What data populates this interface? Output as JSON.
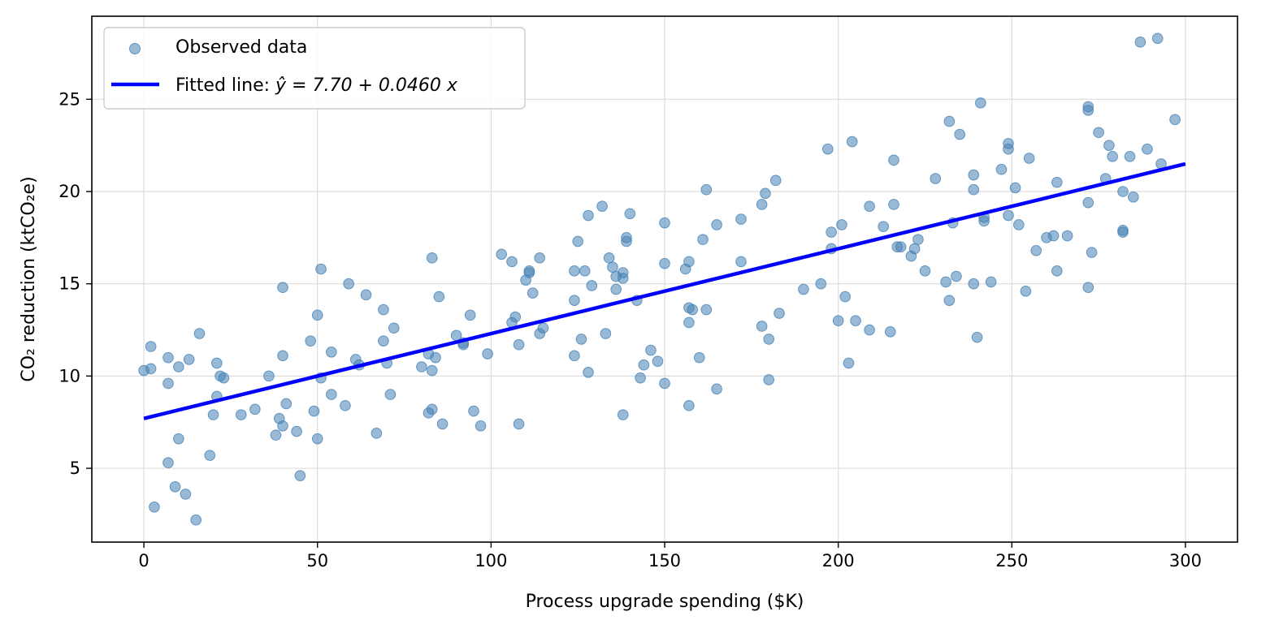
{
  "chart_data": {
    "type": "scatter",
    "xlabel": "Process upgrade spending ($K)",
    "ylabel": "CO₂ reduction (ktCO₂e)",
    "xlim": [
      -15,
      315
    ],
    "ylim": [
      1,
      29.5
    ],
    "xticks": [
      0,
      50,
      100,
      150,
      200,
      250,
      300
    ],
    "yticks": [
      5,
      10,
      15,
      20,
      25
    ],
    "grid": true,
    "legend_position": "top-left",
    "legend": {
      "scatter_label": "Observed data",
      "line_label_prefix": "Fitted line: ",
      "line_label_math": "ŷ = 7.70 + 0.0460 x"
    },
    "colors": {
      "points": "#4682b4",
      "line": "#0000ff"
    },
    "fit": {
      "intercept": 7.7,
      "slope": 0.046,
      "x_range": [
        0,
        300
      ]
    },
    "series": [
      {
        "name": "Observed data",
        "points": [
          [
            0,
            10.3
          ],
          [
            2,
            10.4
          ],
          [
            2,
            11.6
          ],
          [
            3,
            2.9
          ],
          [
            7,
            11
          ],
          [
            7,
            9.6
          ],
          [
            7,
            5.3
          ],
          [
            9,
            4
          ],
          [
            10,
            6.6
          ],
          [
            10,
            10.5
          ],
          [
            12,
            3.6
          ],
          [
            13,
            10.9
          ],
          [
            15,
            2.2
          ],
          [
            16,
            12.3
          ],
          [
            19,
            5.7
          ],
          [
            20,
            7.9
          ],
          [
            21,
            10.7
          ],
          [
            21,
            8.9
          ],
          [
            22,
            10
          ],
          [
            23,
            9.9
          ],
          [
            28,
            7.9
          ],
          [
            32,
            8.2
          ],
          [
            36,
            10
          ],
          [
            38,
            6.8
          ],
          [
            39,
            7.7
          ],
          [
            40,
            14.8
          ],
          [
            40,
            7.3
          ],
          [
            40,
            11.1
          ],
          [
            41,
            8.5
          ],
          [
            44,
            7
          ],
          [
            45,
            4.6
          ],
          [
            48,
            11.9
          ],
          [
            49,
            8.1
          ],
          [
            50,
            6.6
          ],
          [
            50,
            13.3
          ],
          [
            51,
            15.8
          ],
          [
            51,
            9.9
          ],
          [
            54,
            11.3
          ],
          [
            54,
            9
          ],
          [
            58,
            8.4
          ],
          [
            59,
            15
          ],
          [
            61,
            10.9
          ],
          [
            62,
            10.6
          ],
          [
            64,
            14.4
          ],
          [
            67,
            6.9
          ],
          [
            69,
            13.6
          ],
          [
            69,
            11.9
          ],
          [
            70,
            10.7
          ],
          [
            71,
            9
          ],
          [
            72,
            12.6
          ],
          [
            80,
            10.5
          ],
          [
            82,
            8
          ],
          [
            82,
            11.2
          ],
          [
            83,
            8.2
          ],
          [
            83,
            10.3
          ],
          [
            83,
            16.4
          ],
          [
            84,
            11
          ],
          [
            85,
            14.3
          ],
          [
            86,
            7.4
          ],
          [
            90,
            12.2
          ],
          [
            92,
            11.7
          ],
          [
            92,
            11.8
          ],
          [
            94,
            13.3
          ],
          [
            95,
            8.1
          ],
          [
            97,
            7.3
          ],
          [
            99,
            11.2
          ],
          [
            103,
            16.6
          ],
          [
            106,
            12.9
          ],
          [
            106,
            16.2
          ],
          [
            107,
            13.2
          ],
          [
            108,
            11.7
          ],
          [
            108,
            7.4
          ],
          [
            110,
            15.2
          ],
          [
            111,
            15.6
          ],
          [
            111,
            15.7
          ],
          [
            112,
            14.5
          ],
          [
            114,
            16.4
          ],
          [
            114,
            12.3
          ],
          [
            115,
            12.6
          ],
          [
            124,
            14.1
          ],
          [
            124,
            15.7
          ],
          [
            124,
            11.1
          ],
          [
            125,
            17.3
          ],
          [
            126,
            12
          ],
          [
            127,
            15.7
          ],
          [
            128,
            18.7
          ],
          [
            128,
            10.2
          ],
          [
            129,
            14.9
          ],
          [
            132,
            19.2
          ],
          [
            133,
            12.3
          ],
          [
            134,
            16.4
          ],
          [
            135,
            15.9
          ],
          [
            136,
            15.4
          ],
          [
            136,
            14.7
          ],
          [
            138,
            7.9
          ],
          [
            138,
            15.6
          ],
          [
            138,
            15.3
          ],
          [
            139,
            17.5
          ],
          [
            139,
            17.3
          ],
          [
            140,
            18.8
          ],
          [
            142,
            14.1
          ],
          [
            143,
            9.9
          ],
          [
            144,
            10.6
          ],
          [
            146,
            11.4
          ],
          [
            148,
            10.8
          ],
          [
            150,
            9.6
          ],
          [
            150,
            16.1
          ],
          [
            150,
            18.3
          ],
          [
            156,
            15.8
          ],
          [
            157,
            13.7
          ],
          [
            157,
            12.9
          ],
          [
            157,
            8.4
          ],
          [
            157,
            16.2
          ],
          [
            158,
            13.6
          ],
          [
            160,
            11
          ],
          [
            161,
            17.4
          ],
          [
            162,
            13.6
          ],
          [
            162,
            20.1
          ],
          [
            165,
            9.3
          ],
          [
            165,
            18.2
          ],
          [
            172,
            18.5
          ],
          [
            172,
            16.2
          ],
          [
            178,
            19.3
          ],
          [
            178,
            12.7
          ],
          [
            179,
            19.9
          ],
          [
            180,
            12
          ],
          [
            180,
            9.8
          ],
          [
            182,
            20.6
          ],
          [
            183,
            13.4
          ],
          [
            190,
            14.7
          ],
          [
            195,
            15
          ],
          [
            197,
            22.3
          ],
          [
            198,
            17.8
          ],
          [
            198,
            16.9
          ],
          [
            200,
            13
          ],
          [
            201,
            18.2
          ],
          [
            202,
            14.3
          ],
          [
            203,
            10.7
          ],
          [
            204,
            22.7
          ],
          [
            205,
            13
          ],
          [
            209,
            12.5
          ],
          [
            209,
            19.2
          ],
          [
            213,
            18.1
          ],
          [
            215,
            12.4
          ],
          [
            216,
            21.7
          ],
          [
            216,
            19.3
          ],
          [
            217,
            17
          ],
          [
            218,
            17
          ],
          [
            221,
            16.5
          ],
          [
            222,
            16.9
          ],
          [
            223,
            17.4
          ],
          [
            225,
            15.7
          ],
          [
            228,
            20.7
          ],
          [
            231,
            15.1
          ],
          [
            232,
            23.8
          ],
          [
            232,
            14.1
          ],
          [
            233,
            18.3
          ],
          [
            234,
            15.4
          ],
          [
            235,
            23.1
          ],
          [
            239,
            20.9
          ],
          [
            239,
            20.1
          ],
          [
            239,
            15
          ],
          [
            240,
            12.1
          ],
          [
            241,
            24.8
          ],
          [
            242,
            18.4
          ],
          [
            242,
            18.6
          ],
          [
            244,
            15.1
          ],
          [
            247,
            21.2
          ],
          [
            249,
            18.7
          ],
          [
            249,
            22.6
          ],
          [
            249,
            22.3
          ],
          [
            251,
            20.2
          ],
          [
            252,
            18.2
          ],
          [
            254,
            14.6
          ],
          [
            255,
            21.8
          ],
          [
            257,
            16.8
          ],
          [
            260,
            17.5
          ],
          [
            262,
            17.6
          ],
          [
            263,
            15.7
          ],
          [
            263,
            20.5
          ],
          [
            266,
            17.6
          ],
          [
            272,
            19.4
          ],
          [
            272,
            14.8
          ],
          [
            272,
            24.6
          ],
          [
            272,
            24.4
          ],
          [
            273,
            16.7
          ],
          [
            275,
            23.2
          ],
          [
            277,
            20.7
          ],
          [
            278,
            22.5
          ],
          [
            279,
            21.9
          ],
          [
            282,
            17.9
          ],
          [
            282,
            17.8
          ],
          [
            282,
            20
          ],
          [
            284,
            21.9
          ],
          [
            285,
            19.7
          ],
          [
            287,
            28.1
          ],
          [
            289,
            22.3
          ],
          [
            292,
            28.3
          ],
          [
            293,
            21.5
          ],
          [
            297,
            23.9
          ]
        ]
      }
    ]
  }
}
